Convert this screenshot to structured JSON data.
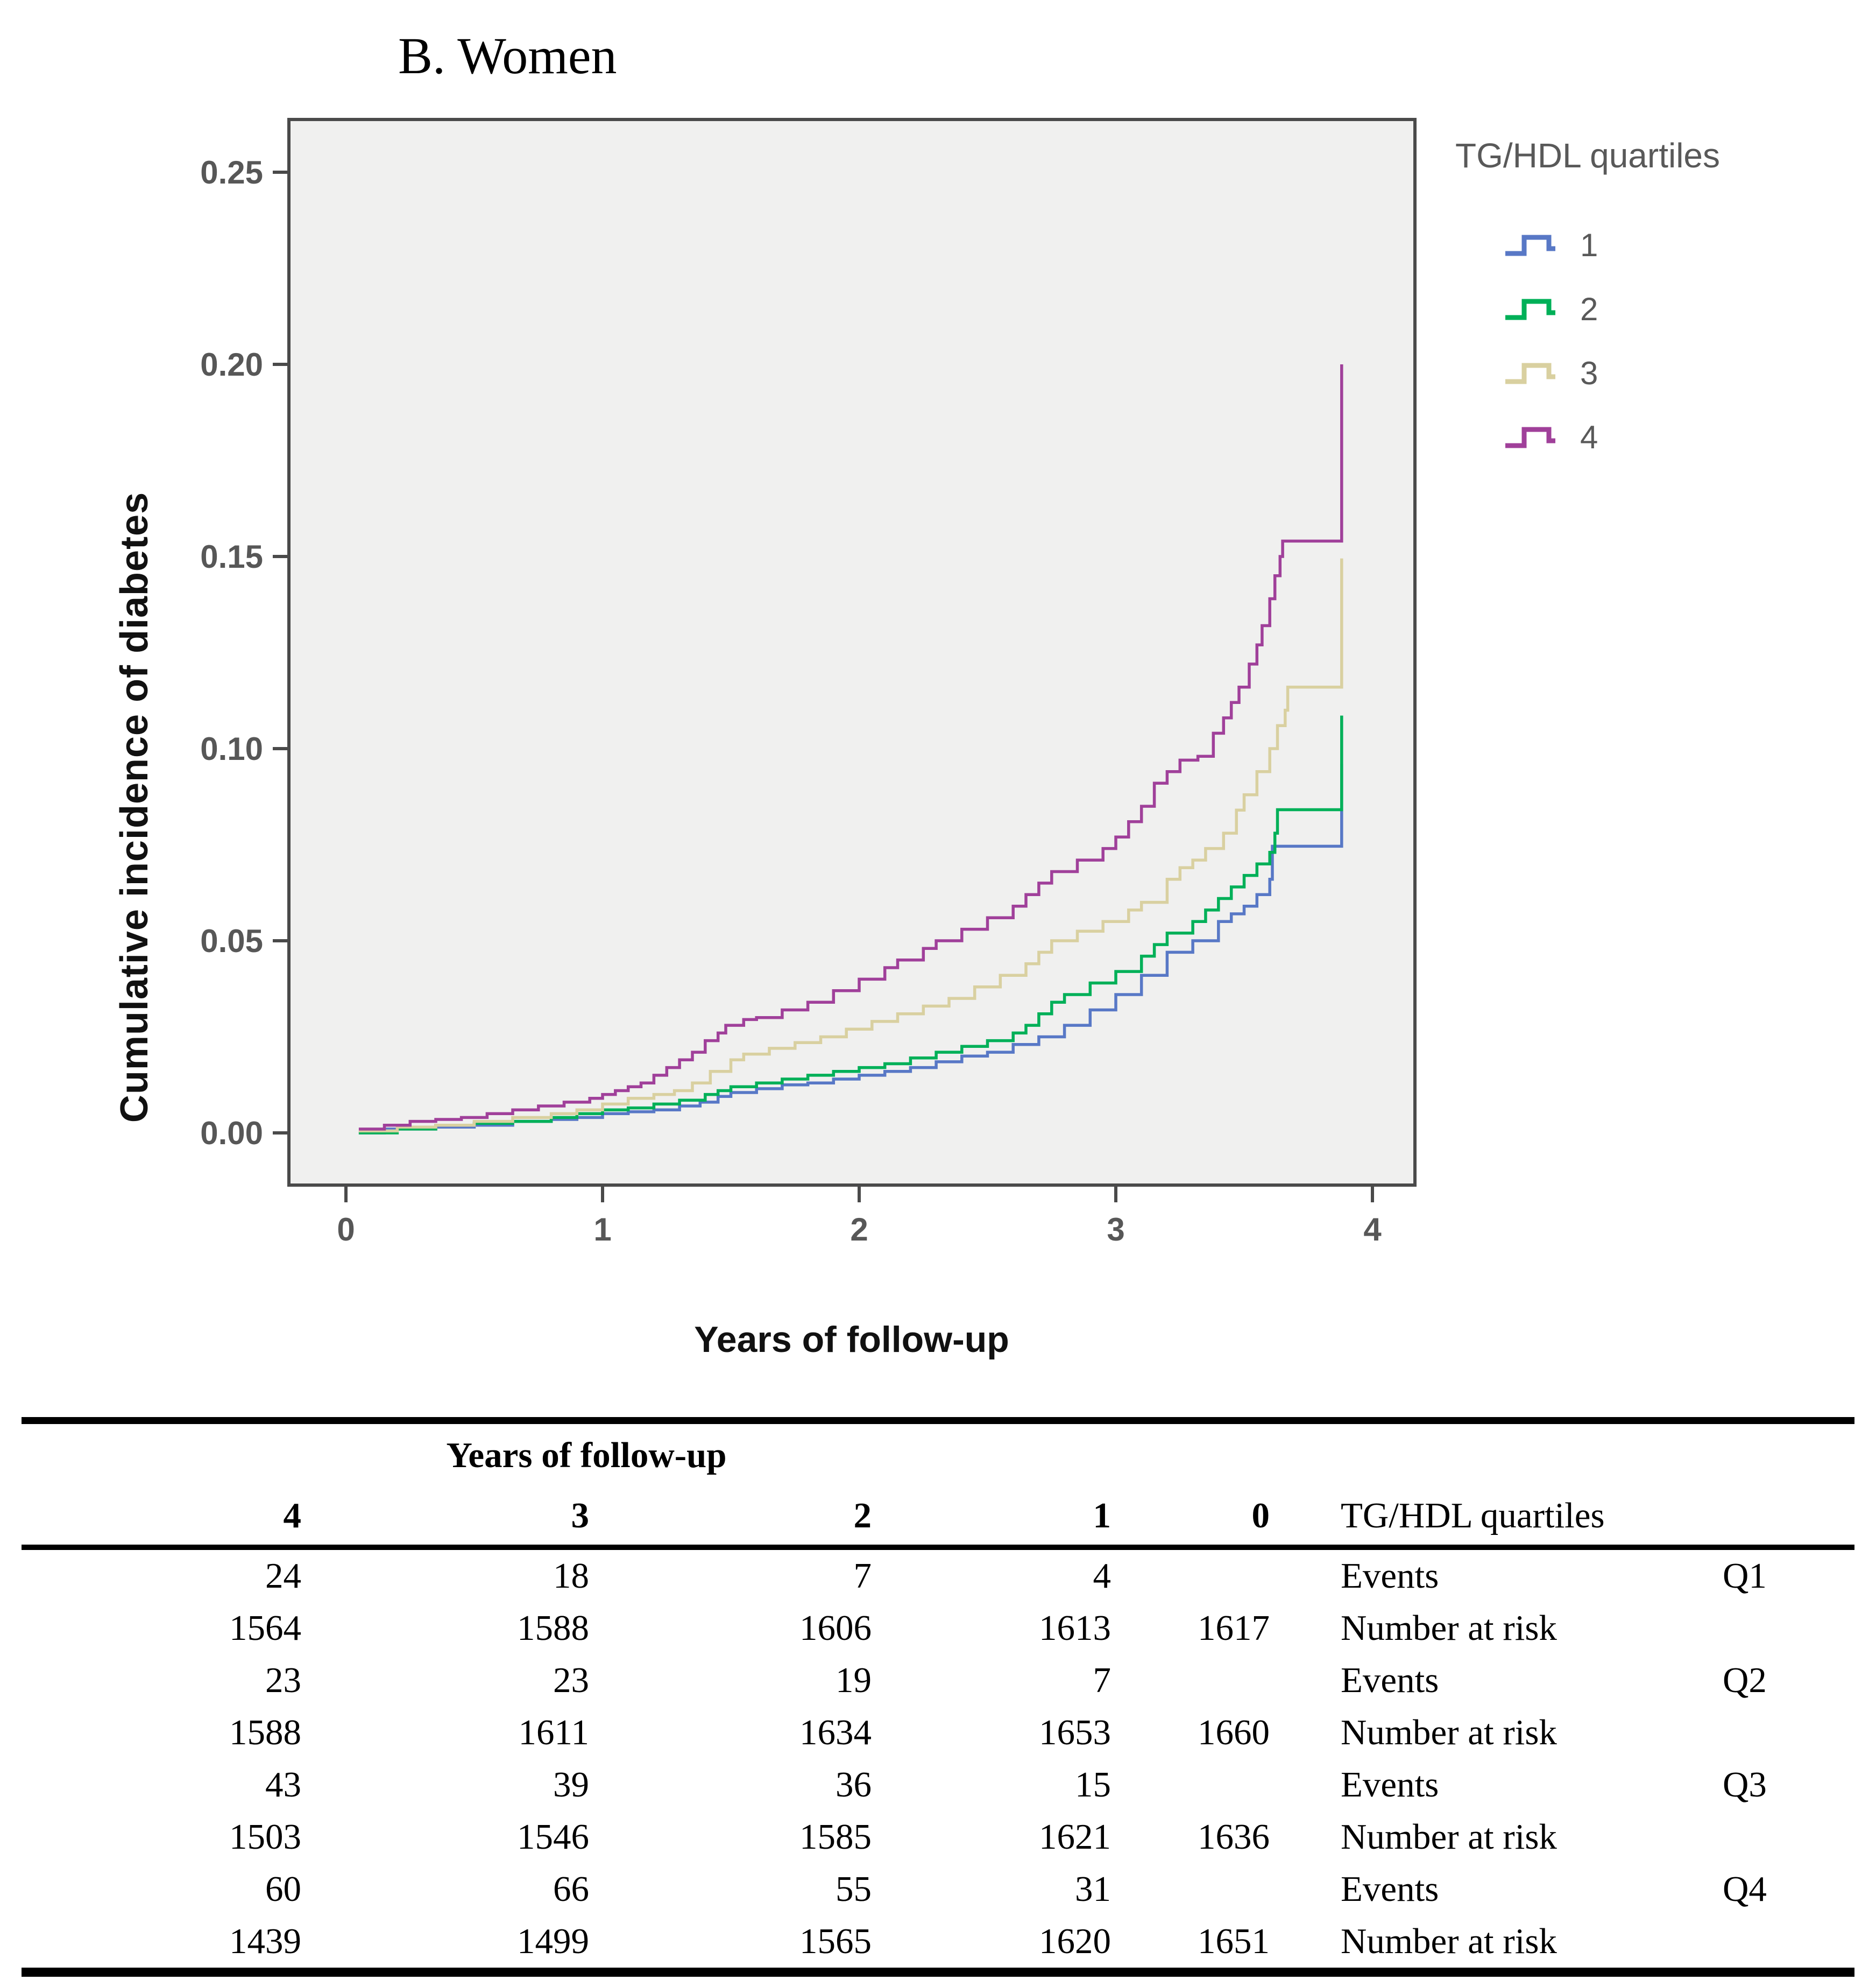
{
  "figure": {
    "panel_title": "B. Women"
  },
  "chart_data": {
    "type": "line",
    "subtype": "step-function-cumulative-incidence",
    "title": "",
    "xlabel": "Years of follow-up",
    "ylabel": "Cumulative incidence of diabetes",
    "xlim": [
      -0.22,
      4.17
    ],
    "ylim": [
      -0.014,
      0.264
    ],
    "grid": false,
    "plot_background": "#f0f0ef",
    "frame_color": "#4a4a4a",
    "tick_label_color": "#575757",
    "x_ticks": [
      {
        "value": 0,
        "label": "0"
      },
      {
        "value": 1,
        "label": "1"
      },
      {
        "value": 2,
        "label": "2"
      },
      {
        "value": 3,
        "label": "3"
      },
      {
        "value": 4,
        "label": "4"
      }
    ],
    "y_ticks": [
      {
        "value": 0.0,
        "label": "0.00"
      },
      {
        "value": 0.05,
        "label": "0.05"
      },
      {
        "value": 0.1,
        "label": "0.10"
      },
      {
        "value": 0.15,
        "label": "0.15"
      },
      {
        "value": 0.2,
        "label": "0.20"
      },
      {
        "value": 0.25,
        "label": "0.25"
      }
    ],
    "legend": {
      "title": "TG/HDL quartiles",
      "position": "outside-top-right"
    },
    "series": [
      {
        "name": "1",
        "quartile": "Q1",
        "color": "#5878c6",
        "points": [
          [
            0.05,
            0
          ],
          [
            0.15,
            0.001
          ],
          [
            0.35,
            0.0015
          ],
          [
            0.5,
            0.002
          ],
          [
            0.65,
            0.003
          ],
          [
            0.8,
            0.0035
          ],
          [
            0.9,
            0.004
          ],
          [
            1,
            0.005
          ],
          [
            1.1,
            0.0055
          ],
          [
            1.2,
            0.006
          ],
          [
            1.3,
            0.007
          ],
          [
            1.38,
            0.008
          ],
          [
            1.45,
            0.0095
          ],
          [
            1.5,
            0.0105
          ],
          [
            1.6,
            0.0115
          ],
          [
            1.7,
            0.0125
          ],
          [
            1.8,
            0.013
          ],
          [
            1.9,
            0.014
          ],
          [
            2,
            0.015
          ],
          [
            2.1,
            0.016
          ],
          [
            2.2,
            0.017
          ],
          [
            2.3,
            0.0185
          ],
          [
            2.4,
            0.02
          ],
          [
            2.5,
            0.021
          ],
          [
            2.6,
            0.023
          ],
          [
            2.7,
            0.025
          ],
          [
            2.8,
            0.028
          ],
          [
            2.9,
            0.032
          ],
          [
            3,
            0.036
          ],
          [
            3.1,
            0.041
          ],
          [
            3.2,
            0.047
          ],
          [
            3.3,
            0.05
          ],
          [
            3.4,
            0.055
          ],
          [
            3.45,
            0.057
          ],
          [
            3.5,
            0.059
          ],
          [
            3.55,
            0.062
          ],
          [
            3.6,
            0.066
          ],
          [
            3.61,
            0.0746
          ],
          [
            3.88,
            0.096
          ]
        ]
      },
      {
        "name": "2",
        "quartile": "Q2",
        "color": "#00b058",
        "points": [
          [
            0.05,
            0
          ],
          [
            0.2,
            0.001
          ],
          [
            0.35,
            0.002
          ],
          [
            0.5,
            0.0025
          ],
          [
            0.65,
            0.003
          ],
          [
            0.8,
            0.004
          ],
          [
            0.9,
            0.005
          ],
          [
            1,
            0.006
          ],
          [
            1.1,
            0.0065
          ],
          [
            1.2,
            0.0075
          ],
          [
            1.3,
            0.0085
          ],
          [
            1.4,
            0.01
          ],
          [
            1.45,
            0.011
          ],
          [
            1.5,
            0.012
          ],
          [
            1.6,
            0.013
          ],
          [
            1.7,
            0.014
          ],
          [
            1.8,
            0.015
          ],
          [
            1.9,
            0.016
          ],
          [
            2,
            0.017
          ],
          [
            2.1,
            0.018
          ],
          [
            2.2,
            0.0195
          ],
          [
            2.3,
            0.021
          ],
          [
            2.4,
            0.0225
          ],
          [
            2.5,
            0.024
          ],
          [
            2.6,
            0.026
          ],
          [
            2.65,
            0.028
          ],
          [
            2.7,
            0.031
          ],
          [
            2.75,
            0.034
          ],
          [
            2.8,
            0.036
          ],
          [
            2.9,
            0.039
          ],
          [
            3,
            0.042
          ],
          [
            3.1,
            0.046
          ],
          [
            3.15,
            0.049
          ],
          [
            3.2,
            0.052
          ],
          [
            3.3,
            0.055
          ],
          [
            3.35,
            0.058
          ],
          [
            3.4,
            0.061
          ],
          [
            3.45,
            0.064
          ],
          [
            3.5,
            0.067
          ],
          [
            3.55,
            0.07
          ],
          [
            3.6,
            0.073
          ],
          [
            3.62,
            0.078
          ],
          [
            3.63,
            0.0841
          ],
          [
            3.88,
            0.1086
          ]
        ]
      },
      {
        "name": "3",
        "quartile": "Q3",
        "color": "#d9d0a0",
        "points": [
          [
            0.05,
            0.0005
          ],
          [
            0.2,
            0.0015
          ],
          [
            0.35,
            0.002
          ],
          [
            0.5,
            0.003
          ],
          [
            0.65,
            0.004
          ],
          [
            0.8,
            0.005
          ],
          [
            0.9,
            0.006
          ],
          [
            1,
            0.0075
          ],
          [
            1.1,
            0.009
          ],
          [
            1.2,
            0.01
          ],
          [
            1.28,
            0.011
          ],
          [
            1.35,
            0.013
          ],
          [
            1.42,
            0.016
          ],
          [
            1.5,
            0.019
          ],
          [
            1.55,
            0.0205
          ],
          [
            1.65,
            0.022
          ],
          [
            1.75,
            0.0235
          ],
          [
            1.85,
            0.025
          ],
          [
            1.95,
            0.027
          ],
          [
            2.05,
            0.029
          ],
          [
            2.15,
            0.031
          ],
          [
            2.25,
            0.033
          ],
          [
            2.35,
            0.035
          ],
          [
            2.45,
            0.038
          ],
          [
            2.55,
            0.041
          ],
          [
            2.65,
            0.044
          ],
          [
            2.7,
            0.047
          ],
          [
            2.75,
            0.05
          ],
          [
            2.85,
            0.0525
          ],
          [
            2.95,
            0.055
          ],
          [
            3.05,
            0.058
          ],
          [
            3.1,
            0.06
          ],
          [
            3.2,
            0.066
          ],
          [
            3.25,
            0.069
          ],
          [
            3.3,
            0.071
          ],
          [
            3.35,
            0.074
          ],
          [
            3.42,
            0.078
          ],
          [
            3.47,
            0.084
          ],
          [
            3.5,
            0.088
          ],
          [
            3.55,
            0.094
          ],
          [
            3.6,
            0.1
          ],
          [
            3.63,
            0.106
          ],
          [
            3.66,
            0.11
          ],
          [
            3.67,
            0.116
          ],
          [
            3.88,
            0.1495
          ]
        ]
      },
      {
        "name": "4",
        "quartile": "Q4",
        "color": "#a0409a",
        "points": [
          [
            0.05,
            0.001
          ],
          [
            0.15,
            0.002
          ],
          [
            0.25,
            0.003
          ],
          [
            0.35,
            0.0035
          ],
          [
            0.45,
            0.004
          ],
          [
            0.55,
            0.005
          ],
          [
            0.65,
            0.006
          ],
          [
            0.75,
            0.007
          ],
          [
            0.85,
            0.008
          ],
          [
            0.95,
            0.009
          ],
          [
            1,
            0.01
          ],
          [
            1.05,
            0.011
          ],
          [
            1.1,
            0.012
          ],
          [
            1.15,
            0.013
          ],
          [
            1.2,
            0.015
          ],
          [
            1.25,
            0.017
          ],
          [
            1.3,
            0.019
          ],
          [
            1.35,
            0.021
          ],
          [
            1.4,
            0.024
          ],
          [
            1.45,
            0.026
          ],
          [
            1.48,
            0.028
          ],
          [
            1.55,
            0.0295
          ],
          [
            1.6,
            0.03
          ],
          [
            1.7,
            0.032
          ],
          [
            1.8,
            0.034
          ],
          [
            1.9,
            0.037
          ],
          [
            2,
            0.04
          ],
          [
            2.1,
            0.043
          ],
          [
            2.15,
            0.045
          ],
          [
            2.25,
            0.048
          ],
          [
            2.3,
            0.05
          ],
          [
            2.4,
            0.053
          ],
          [
            2.5,
            0.056
          ],
          [
            2.6,
            0.059
          ],
          [
            2.65,
            0.062
          ],
          [
            2.7,
            0.065
          ],
          [
            2.75,
            0.068
          ],
          [
            2.85,
            0.071
          ],
          [
            2.95,
            0.074
          ],
          [
            3,
            0.077
          ],
          [
            3.05,
            0.081
          ],
          [
            3.1,
            0.085
          ],
          [
            3.15,
            0.091
          ],
          [
            3.2,
            0.094
          ],
          [
            3.25,
            0.097
          ],
          [
            3.32,
            0.098
          ],
          [
            3.38,
            0.104
          ],
          [
            3.42,
            0.108
          ],
          [
            3.45,
            0.112
          ],
          [
            3.48,
            0.116
          ],
          [
            3.52,
            0.122
          ],
          [
            3.55,
            0.127
          ],
          [
            3.57,
            0.132
          ],
          [
            3.6,
            0.139
          ],
          [
            3.62,
            0.145
          ],
          [
            3.64,
            0.15
          ],
          [
            3.65,
            0.154
          ],
          [
            3.88,
            0.2
          ]
        ]
      }
    ]
  },
  "table": {
    "group_header": "Years of follow-up",
    "columns": [
      "4",
      "3",
      "2",
      "1",
      "0",
      "TG/HDL quartiles",
      ""
    ],
    "rows": [
      [
        "24",
        "18",
        "7",
        "4",
        "",
        "Events",
        "Q1"
      ],
      [
        "1564",
        "1588",
        "1606",
        "1613",
        "1617",
        "Number at risk",
        ""
      ],
      [
        "23",
        "23",
        "19",
        "7",
        "",
        "Events",
        "Q2"
      ],
      [
        "1588",
        "1611",
        "1634",
        "1653",
        "1660",
        "Number at risk",
        ""
      ],
      [
        "43",
        "39",
        "36",
        "15",
        "",
        "Events",
        "Q3"
      ],
      [
        "1503",
        "1546",
        "1585",
        "1621",
        "1636",
        "Number at risk",
        ""
      ],
      [
        "60",
        "66",
        "55",
        "31",
        "",
        "Events",
        "Q4"
      ],
      [
        "1439",
        "1499",
        "1565",
        "1620",
        "1651",
        "Number at risk",
        ""
      ]
    ]
  },
  "colors": {
    "q1_blue": "#5878c6",
    "q2_green": "#00b058",
    "q3_tan": "#d9d0a0",
    "q4_purple": "#a0409a",
    "axis_frame": "#4a4a4a",
    "tick_text": "#575757",
    "legend_text": "#595959"
  }
}
